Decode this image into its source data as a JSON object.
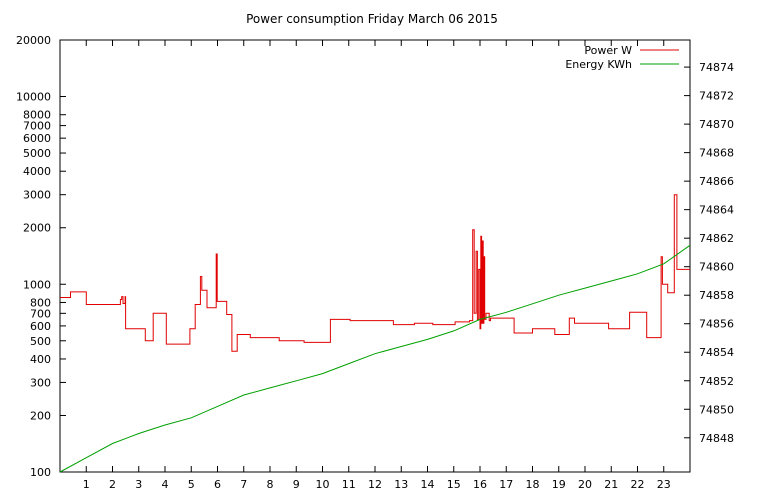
{
  "chart_data": {
    "type": "line",
    "title": "Power consumption Friday March 06 2015",
    "x": {
      "range": [
        0,
        24
      ],
      "ticks": [
        1,
        2,
        3,
        4,
        5,
        6,
        7,
        8,
        9,
        10,
        11,
        12,
        13,
        14,
        15,
        16,
        17,
        18,
        19,
        20,
        21,
        22,
        23
      ]
    },
    "y_left": {
      "scale": "log",
      "range": [
        100,
        20000
      ],
      "ticks": [
        100,
        200,
        300,
        400,
        500,
        600,
        700,
        800,
        1000,
        2000,
        3000,
        4000,
        5000,
        6000,
        7000,
        8000,
        10000,
        20000
      ]
    },
    "y_right": {
      "scale": "linear",
      "range": [
        74845.6,
        74875.9
      ],
      "ticks": [
        74848,
        74850,
        74852,
        74854,
        74856,
        74858,
        74860,
        74862,
        74864,
        74866,
        74868,
        74870,
        74872,
        74874
      ]
    },
    "grid": false,
    "legend_position": "top-right",
    "series": [
      {
        "name": "Power W",
        "color": "#e00000",
        "axis": "left",
        "step": true,
        "points": [
          [
            0.0,
            850
          ],
          [
            0.4,
            910
          ],
          [
            1.0,
            780
          ],
          [
            2.3,
            830
          ],
          [
            2.35,
            860
          ],
          [
            2.4,
            790
          ],
          [
            2.48,
            860
          ],
          [
            2.5,
            580
          ],
          [
            3.25,
            500
          ],
          [
            3.55,
            700
          ],
          [
            4.05,
            480
          ],
          [
            4.95,
            580
          ],
          [
            5.15,
            780
          ],
          [
            5.35,
            1100
          ],
          [
            5.4,
            930
          ],
          [
            5.6,
            750
          ],
          [
            5.95,
            1450
          ],
          [
            5.99,
            810
          ],
          [
            6.35,
            690
          ],
          [
            6.55,
            440
          ],
          [
            6.75,
            540
          ],
          [
            7.25,
            520
          ],
          [
            8.35,
            500
          ],
          [
            9.3,
            490
          ],
          [
            10.3,
            650
          ],
          [
            11.05,
            640
          ],
          [
            12.7,
            610
          ],
          [
            13.5,
            620
          ],
          [
            14.2,
            610
          ],
          [
            15.05,
            630
          ],
          [
            15.6,
            640
          ],
          [
            15.72,
            1950
          ],
          [
            15.78,
            700
          ],
          [
            15.85,
            1500
          ],
          [
            15.9,
            650
          ],
          [
            15.95,
            1200
          ],
          [
            16.0,
            580
          ],
          [
            16.03,
            1800
          ],
          [
            16.06,
            620
          ],
          [
            16.09,
            1700
          ],
          [
            16.12,
            620
          ],
          [
            16.15,
            1400
          ],
          [
            16.18,
            650
          ],
          [
            16.23,
            700
          ],
          [
            16.35,
            640
          ],
          [
            16.4,
            660
          ],
          [
            17.3,
            550
          ],
          [
            18.0,
            580
          ],
          [
            18.85,
            540
          ],
          [
            19.4,
            660
          ],
          [
            19.6,
            620
          ],
          [
            20.9,
            580
          ],
          [
            21.7,
            710
          ],
          [
            22.35,
            520
          ],
          [
            22.9,
            1400
          ],
          [
            22.95,
            1000
          ],
          [
            23.15,
            900
          ],
          [
            23.4,
            3000
          ],
          [
            23.5,
            1200
          ],
          [
            24.0,
            1200
          ]
        ]
      },
      {
        "name": "Energy KWh",
        "color": "#00a000",
        "axis": "right",
        "step": false,
        "points": [
          [
            0.0,
            74845.6
          ],
          [
            1.0,
            74846.6
          ],
          [
            2.0,
            74847.6
          ],
          [
            3.0,
            74848.3
          ],
          [
            4.0,
            74848.9
          ],
          [
            5.0,
            74849.4
          ],
          [
            6.0,
            74850.2
          ],
          [
            7.0,
            74851.0
          ],
          [
            8.0,
            74851.5
          ],
          [
            9.0,
            74852.0
          ],
          [
            10.0,
            74852.5
          ],
          [
            11.0,
            74853.2
          ],
          [
            12.0,
            74853.9
          ],
          [
            13.0,
            74854.4
          ],
          [
            14.0,
            74854.9
          ],
          [
            15.0,
            74855.5
          ],
          [
            16.0,
            74856.3
          ],
          [
            17.0,
            74856.8
          ],
          [
            18.0,
            74857.4
          ],
          [
            19.0,
            74858.0
          ],
          [
            20.0,
            74858.5
          ],
          [
            21.0,
            74859.0
          ],
          [
            22.0,
            74859.5
          ],
          [
            23.0,
            74860.2
          ],
          [
            24.0,
            74861.5
          ]
        ]
      }
    ]
  }
}
